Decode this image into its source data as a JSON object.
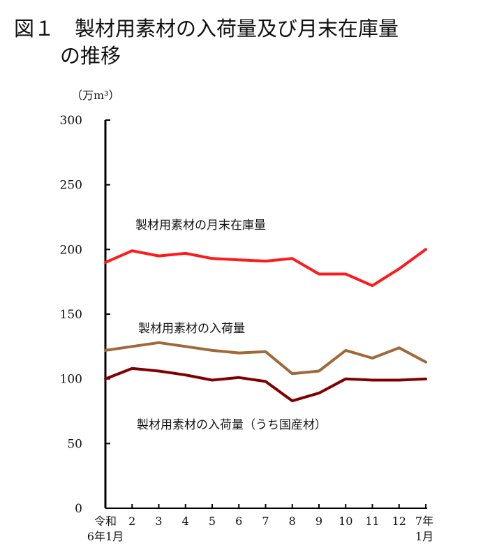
{
  "title": {
    "line1": "図１　製材用素材の入荷量及び月末在庫量",
    "line2": "の推移"
  },
  "chart_data": {
    "type": "line",
    "unit_label": "（万m³）",
    "ylim": [
      0,
      300
    ],
    "yticks": [
      0,
      50,
      100,
      150,
      200,
      250,
      300
    ],
    "categories": [
      [
        "令和",
        "6年1月"
      ],
      [
        "2"
      ],
      [
        "3"
      ],
      [
        "4"
      ],
      [
        "5"
      ],
      [
        "6"
      ],
      [
        "7"
      ],
      [
        "8"
      ],
      [
        "9"
      ],
      [
        "10"
      ],
      [
        "11"
      ],
      [
        "12"
      ],
      [
        "7年",
        "1月"
      ]
    ],
    "series": [
      {
        "name": "製材用素材の月末在庫量",
        "color": "#ff1a1a",
        "values": [
          190,
          199,
          195,
          197,
          193,
          192,
          191,
          193,
          181,
          181,
          172,
          185,
          200
        ]
      },
      {
        "name": "製材用素材の入荷量",
        "color": "#a0693a",
        "values": [
          122,
          125,
          128,
          125,
          122,
          120,
          121,
          104,
          106,
          122,
          116,
          124,
          113
        ]
      },
      {
        "name": "製材用素材の入荷量（うち国産材）",
        "color": "#800000",
        "values": [
          100,
          108,
          106,
          103,
          99,
          101,
          98,
          83,
          89,
          100,
          99,
          99,
          100
        ]
      }
    ]
  }
}
